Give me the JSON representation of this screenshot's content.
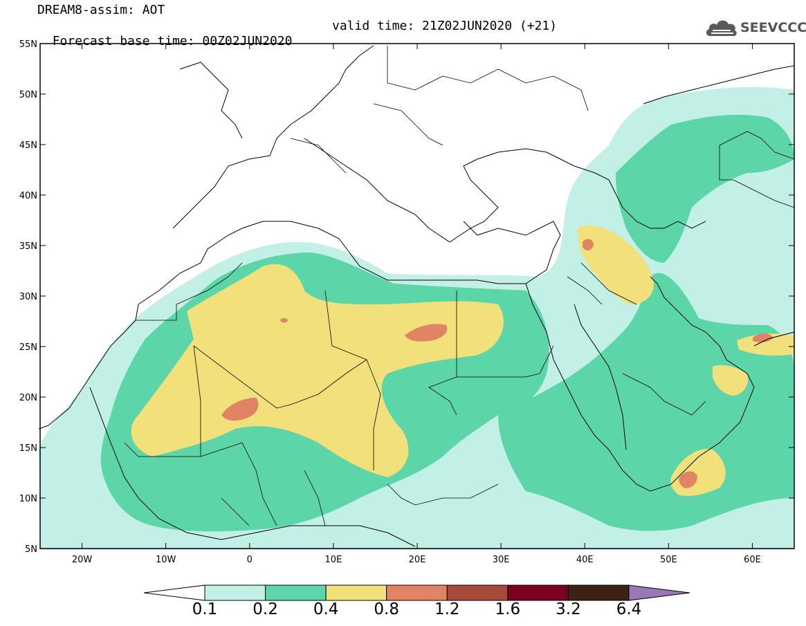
{
  "header": {
    "title": "DREAM8-assim: AOT",
    "base_time": "Forecast base time: 00Z02JUN2020",
    "valid_time": "valid time: 21Z02JUN2020 (+21)"
  },
  "logo": {
    "text": "SEEVCCC",
    "icon": "cloud-logo-icon"
  },
  "map": {
    "lon_range": [
      -25,
      65
    ],
    "lat_range": [
      5,
      55
    ],
    "lat_labels": [
      "55N",
      "50N",
      "45N",
      "40N",
      "35N",
      "30N",
      "25N",
      "20N",
      "15N",
      "10N",
      "5N"
    ],
    "lon_labels": [
      "20W",
      "10W",
      "0",
      "10E",
      "20E",
      "30E",
      "40E",
      "50E",
      "60E"
    ],
    "field": "aerosol optical thickness (dust)"
  },
  "colorbar": {
    "labels": [
      "0.1",
      "0.2",
      "0.4",
      "0.8",
      "1.2",
      "1.6",
      "3.2",
      "6.4"
    ],
    "colors": [
      "#ffffff",
      "#c2f0e6",
      "#5cd6a8",
      "#f2e07a",
      "#e08464",
      "#a84a3a",
      "#7a0020",
      "#3a2214",
      "#9a78b8"
    ]
  },
  "colors": {
    "level_0_1": "#c2f0e6",
    "level_0_2": "#5cd6a8",
    "level_0_4": "#f2e07a",
    "level_0_8": "#e08464",
    "level_1_2": "#a84a3a"
  }
}
